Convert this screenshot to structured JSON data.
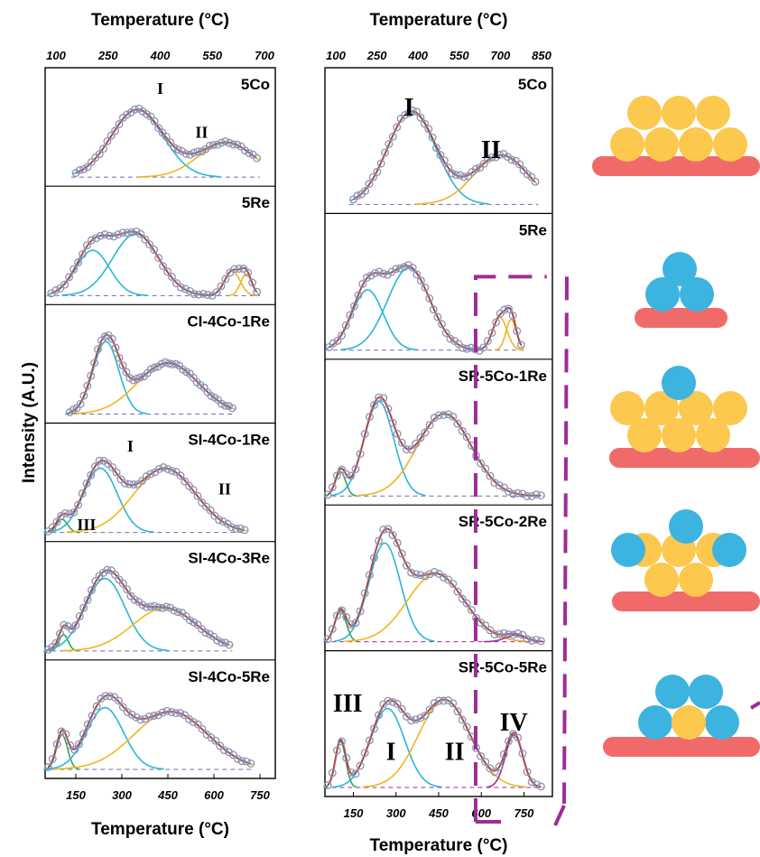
{
  "figure": {
    "y_axis_label": "Intensity (A.U.)",
    "colors": {
      "fit": "#a84a4a",
      "markers": "#8a93b5",
      "peak_I": "#2ab5d8",
      "peak_II": "#f2b41e",
      "peak_III": "#33a852",
      "peak_IV": "#9c2c9a",
      "baseline": "#6a6fb0",
      "support": "#f06a6a",
      "co_atom": "#fcc84e",
      "re_atom": "#3db3e0",
      "dashed_box": "#9b2d98"
    },
    "schematics": [
      {
        "name": "5Co-stack",
        "atoms": "Co on support"
      },
      {
        "name": "5Re-stack",
        "atoms": "Re on support"
      },
      {
        "name": "SR-5Co-1Re-stack",
        "atoms": "Co with one Re on top"
      },
      {
        "name": "SR-5Co-2Re-stack",
        "atoms": "Co with two Re on sides and one on top"
      },
      {
        "name": "SR-5Co-5Re-stack",
        "atoms": "Re surrounding Co"
      }
    ]
  },
  "chart_data": [
    {
      "type": "line",
      "top_xlabel": "Temperature (°C)",
      "top_ticks": [
        "100",
        "250",
        "400",
        "550",
        "700"
      ],
      "xlabel": "Temperature (°C)",
      "bottom_ticks": [
        "150",
        "300",
        "450",
        "600",
        "750"
      ],
      "xlim": [
        50,
        800
      ],
      "panels": [
        {
          "label": "5Co",
          "peak_labels": [
            "I",
            "II"
          ],
          "peaks": [
            {
              "type": "I",
              "center": 350,
              "width": 85,
              "height": 0.82
            },
            {
              "type": "II",
              "center": 640,
              "width": 90,
              "height": 0.42
            }
          ],
          "x_range": [
            150,
            740
          ]
        },
        {
          "label": "5Re",
          "peak_labels": [],
          "peaks": [
            {
              "type": "I",
              "center": 205,
              "width": 55,
              "height": 0.55
            },
            {
              "type": "I",
              "center": 345,
              "width": 75,
              "height": 0.75
            },
            {
              "type": "II",
              "center": 660,
              "width": 25,
              "height": 0.3
            },
            {
              "type": "II",
              "center": 705,
              "width": 18,
              "height": 0.26
            }
          ],
          "x_range": [
            70,
            740
          ]
        },
        {
          "label": "CI-4Co-1Re",
          "peak_labels": [],
          "peaks": [
            {
              "type": "I",
              "center": 248,
              "width": 42,
              "height": 0.88
            },
            {
              "type": "II",
              "center": 450,
              "width": 100,
              "height": 0.62
            }
          ],
          "x_range": [
            130,
            660
          ]
        },
        {
          "label": "SI-4Co-1Re",
          "peak_labels": [
            "I",
            "II",
            "III"
          ],
          "peaks": [
            {
              "type": "III",
              "center": 105,
              "width": 18,
              "height": 0.16
            },
            {
              "type": "I",
              "center": 230,
              "width": 55,
              "height": 0.78
            },
            {
              "type": "II",
              "center": 440,
              "width": 100,
              "height": 0.78
            }
          ],
          "x_range": [
            60,
            700
          ]
        },
        {
          "label": "SI-4Co-3Re",
          "peak_labels": [],
          "peaks": [
            {
              "type": "III",
              "center": 110,
              "width": 15,
              "height": 0.2
            },
            {
              "type": "I",
              "center": 245,
              "width": 65,
              "height": 0.88
            },
            {
              "type": "II",
              "center": 440,
              "width": 105,
              "height": 0.52
            }
          ],
          "x_range": [
            60,
            650
          ]
        },
        {
          "label": "SI-4Co-5Re",
          "peak_labels": [],
          "peaks": [
            {
              "type": "III",
              "center": 105,
              "width": 18,
              "height": 0.42
            },
            {
              "type": "I",
              "center": 245,
              "width": 60,
              "height": 0.75
            },
            {
              "type": "II",
              "center": 460,
              "width": 120,
              "height": 0.7
            }
          ],
          "x_range": [
            60,
            720
          ]
        }
      ]
    },
    {
      "type": "line",
      "top_xlabel": "Temperature (°C)",
      "top_ticks": [
        "100",
        "250",
        "400",
        "550",
        "700",
        "850"
      ],
      "xlabel": "Temperature (°C)",
      "bottom_ticks": [
        "150",
        "300",
        "450",
        "600",
        "750"
      ],
      "xlim": [
        50,
        850
      ],
      "panels": [
        {
          "label": "5Co",
          "peak_labels": [
            "I",
            "II"
          ],
          "peaks": [
            {
              "type": "I",
              "center": 355,
              "width": 85,
              "height": 0.85
            },
            {
              "type": "II",
              "center": 670,
              "width": 95,
              "height": 0.45
            }
          ],
          "x_range": [
            150,
            790
          ]
        },
        {
          "label": "5Re",
          "peak_labels": [],
          "peaks": [
            {
              "type": "I",
              "center": 200,
              "width": 55,
              "height": 0.55
            },
            {
              "type": "I",
              "center": 345,
              "width": 75,
              "height": 0.75
            },
            {
              "type": "II",
              "center": 665,
              "width": 25,
              "height": 0.3
            },
            {
              "type": "II",
              "center": 705,
              "width": 18,
              "height": 0.28
            }
          ],
          "x_range": [
            65,
            740
          ]
        },
        {
          "label": "SR-5Co-1Re",
          "peak_labels": [],
          "peaks": [
            {
              "type": "III",
              "center": 105,
              "width": 18,
              "height": 0.22
            },
            {
              "type": "I",
              "center": 240,
              "width": 52,
              "height": 0.86
            },
            {
              "type": "II",
              "center": 470,
              "width": 95,
              "height": 0.75
            }
          ],
          "x_range": [
            60,
            810
          ]
        },
        {
          "label": "SR-5Co-2Re",
          "peak_labels": [],
          "peaks": [
            {
              "type": "III",
              "center": 105,
              "width": 20,
              "height": 0.28
            },
            {
              "type": "I",
              "center": 260,
              "width": 55,
              "height": 0.9
            },
            {
              "type": "II",
              "center": 440,
              "width": 100,
              "height": 0.62
            },
            {
              "type": "IV",
              "center": 720,
              "width": 35,
              "height": 0.06
            }
          ],
          "x_range": [
            60,
            810
          ]
        },
        {
          "label": "SR-5Co-5Re",
          "peak_labels": [
            "III",
            "I",
            "II",
            "IV"
          ],
          "peaks": [
            {
              "type": "III",
              "center": 105,
              "width": 18,
              "height": 0.42
            },
            {
              "type": "I",
              "center": 270,
              "width": 60,
              "height": 0.72
            },
            {
              "type": "II",
              "center": 470,
              "width": 90,
              "height": 0.8
            },
            {
              "type": "IV",
              "center": 715,
              "width": 30,
              "height": 0.48
            }
          ],
          "x_range": [
            60,
            810
          ]
        }
      ]
    }
  ]
}
